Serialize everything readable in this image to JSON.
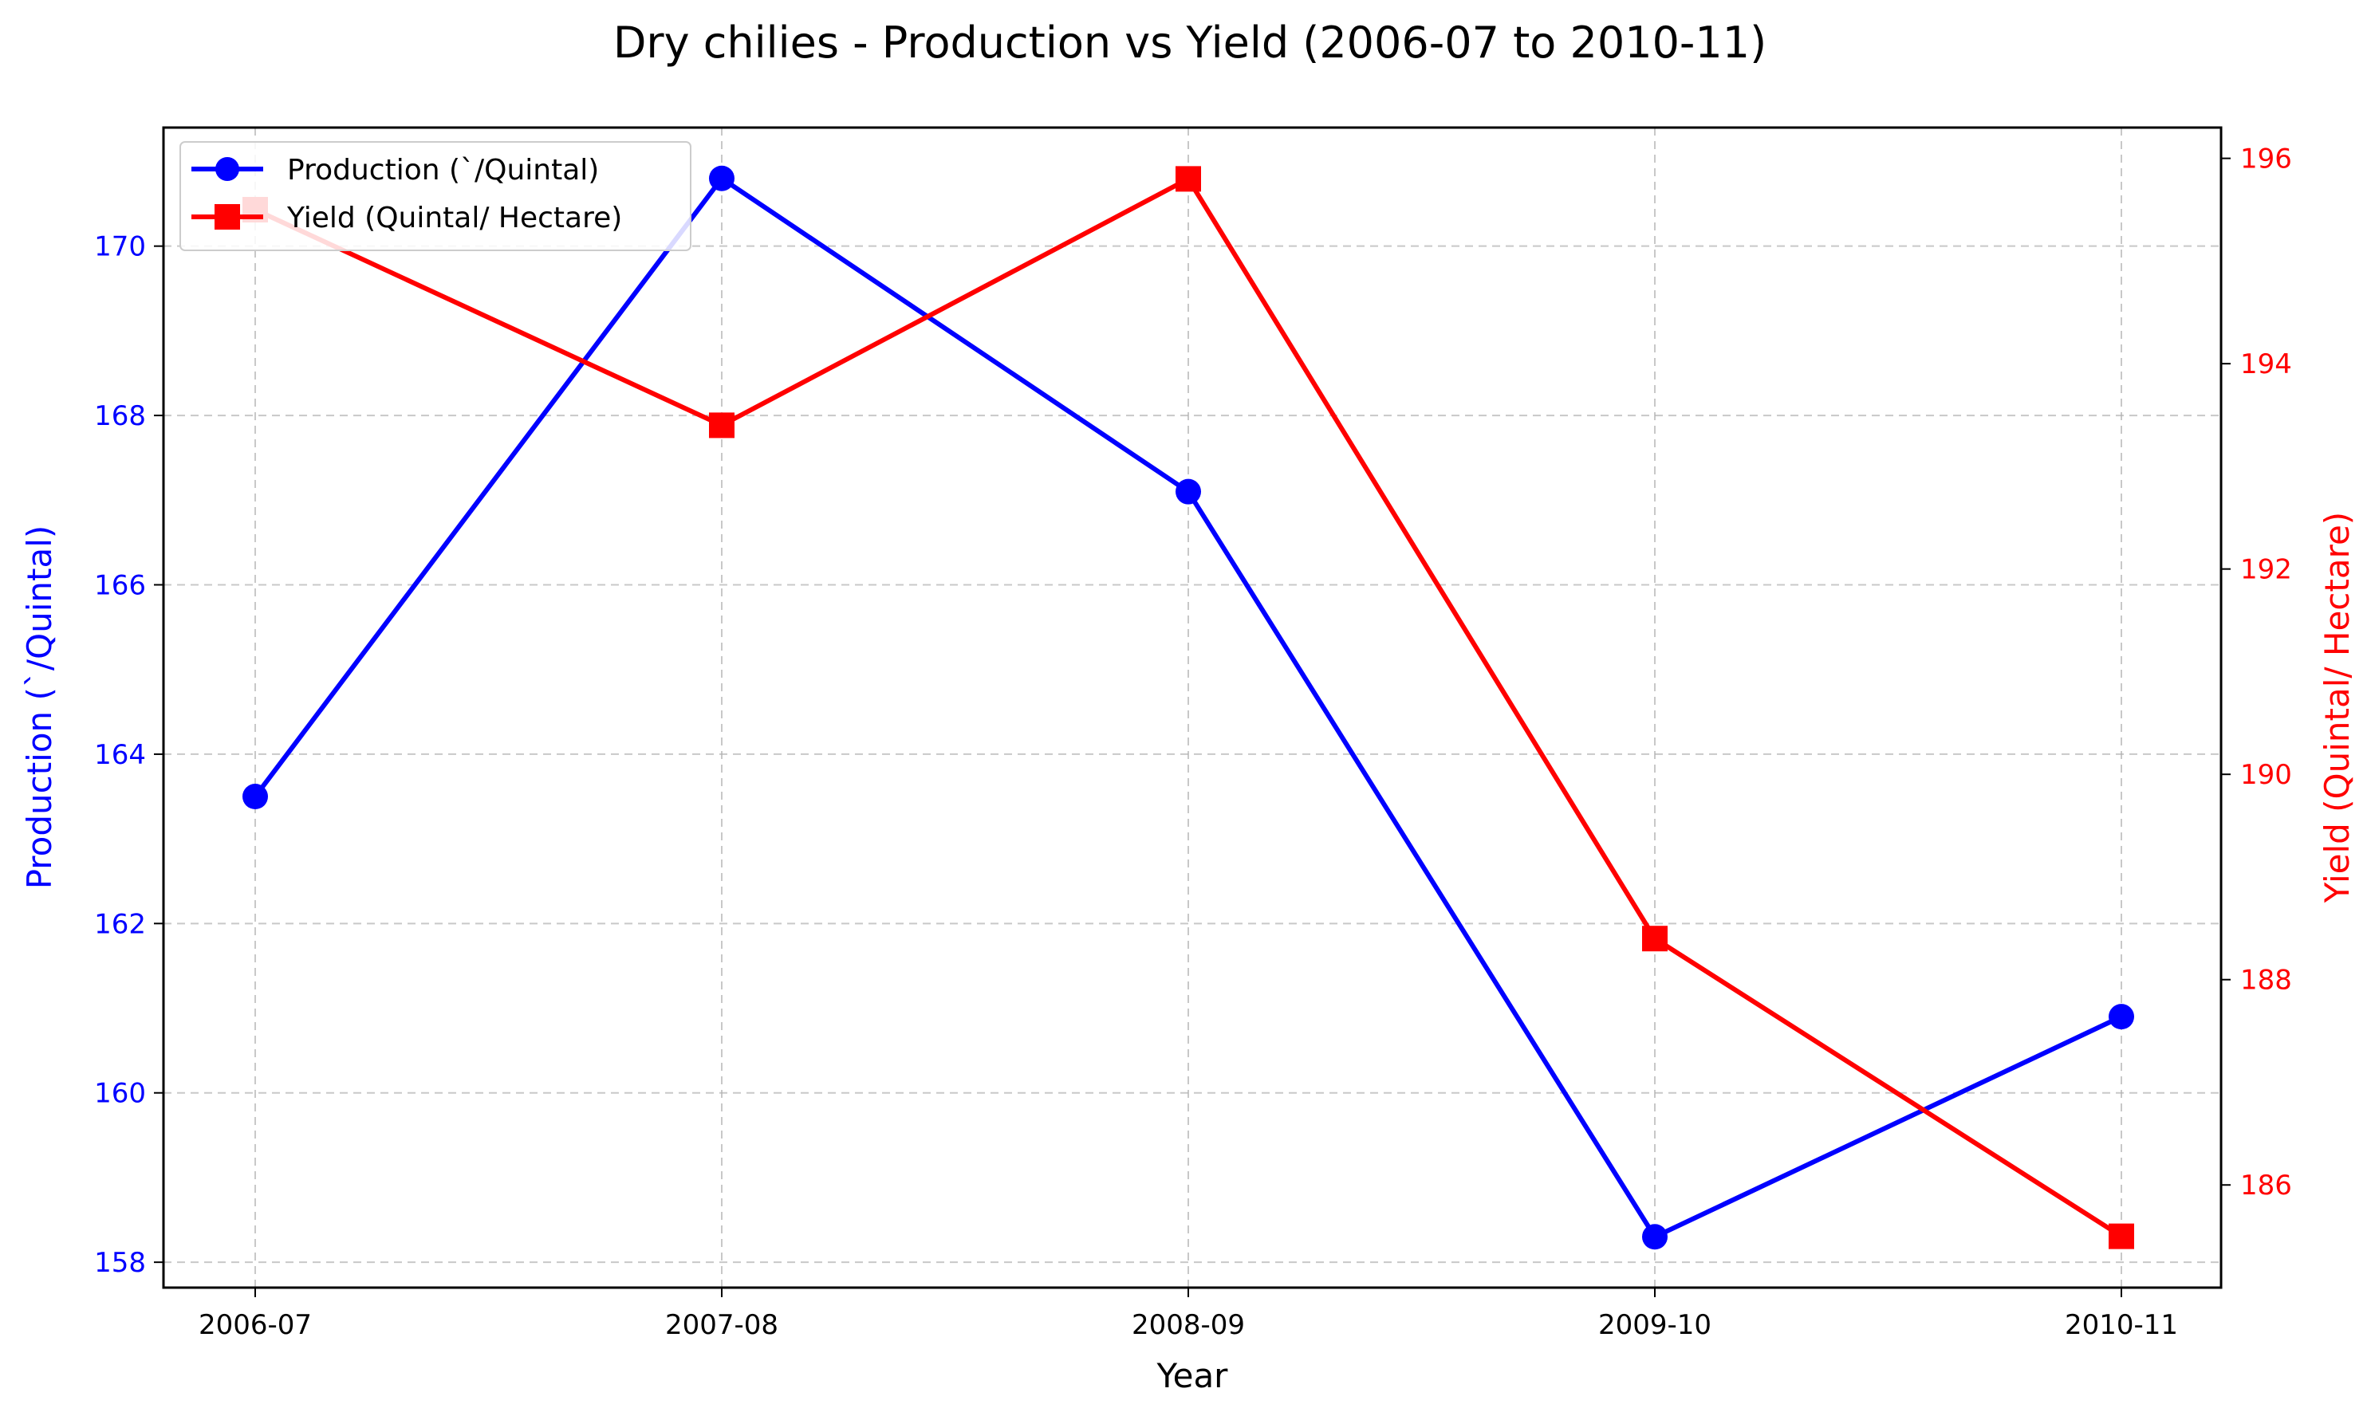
{
  "chart_data": {
    "type": "line",
    "title": "Dry chilies  - Production vs Yield (2006-07 to 2010-11)",
    "xlabel": "Year",
    "categories": [
      "2006-07",
      "2007-08",
      "2008-09",
      "2009-10",
      "2010-11"
    ],
    "y_left": {
      "label": "Production (`/Quintal)",
      "ticks": [
        "158",
        "160",
        "162",
        "164",
        "166",
        "168",
        "170"
      ],
      "range": [
        157.7,
        171.4
      ],
      "color": "#0000ff"
    },
    "y_right": {
      "label": "Yield (Quintal/ Hectare)",
      "ticks": [
        "186",
        "188",
        "190",
        "192",
        "194",
        "196"
      ],
      "range": [
        185.0,
        196.3
      ],
      "color": "#ff0000"
    },
    "series": [
      {
        "name": "Production (`/Quintal)",
        "axis": "left",
        "color": "#0000ff",
        "marker": "circle",
        "values": [
          163.5,
          170.8,
          167.1,
          158.3,
          160.9
        ]
      },
      {
        "name": "Yield (Quintal/ Hectare)",
        "axis": "right",
        "color": "#ff0000",
        "marker": "square",
        "values": [
          195.5,
          193.4,
          195.8,
          188.4,
          185.5
        ]
      }
    ],
    "grid": true,
    "legend_position": "top-left"
  }
}
